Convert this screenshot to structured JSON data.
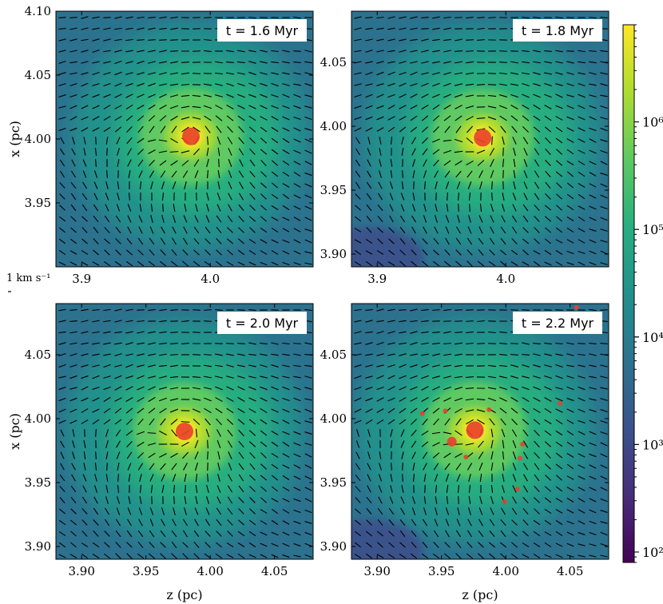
{
  "chart_data": {
    "type": "heatmap",
    "colormap": "viridis",
    "colorbar": {
      "scale": "log",
      "range": [
        80,
        8000000
      ],
      "ticks": [
        {
          "value": 100,
          "label": "10²"
        },
        {
          "value": 1000,
          "label": "10³"
        },
        {
          "value": 10000,
          "label": "10⁴"
        },
        {
          "value": 100000,
          "label": "10⁵"
        },
        {
          "value": 1000000,
          "label": "10⁶"
        }
      ]
    },
    "quiver_scale_label": "1 km s⁻¹",
    "axis_labels": {
      "x": "z (pc)",
      "y": "x (pc)"
    },
    "panels": [
      {
        "time_label": "t = 1.6 Myr",
        "xlim": [
          3.88,
          4.08
        ],
        "ylim": [
          3.9,
          4.1
        ],
        "xticks": [
          {
            "value": 3.9,
            "label": "3.9"
          },
          {
            "value": 4.0,
            "label": "4.0"
          }
        ],
        "yticks": [
          {
            "value": 3.95,
            "label": "3.95"
          },
          {
            "value": 4.0,
            "label": "4.00"
          },
          {
            "value": 4.05,
            "label": "4.05"
          },
          {
            "value": 4.1,
            "label": "4.10"
          }
        ],
        "center": [
          3.985,
          4.002
        ],
        "sink_particles": [
          {
            "z": 3.985,
            "x": 4.002,
            "size": "large"
          }
        ]
      },
      {
        "time_label": "t = 1.8 Myr",
        "xlim": [
          3.88,
          4.08
        ],
        "ylim": [
          3.89,
          4.09
        ],
        "xticks": [
          {
            "value": 3.9,
            "label": "3.9"
          },
          {
            "value": 4.0,
            "label": "4.0"
          }
        ],
        "yticks": [
          {
            "value": 3.9,
            "label": "3.90"
          },
          {
            "value": 3.95,
            "label": "3.95"
          },
          {
            "value": 4.0,
            "label": "4.00"
          },
          {
            "value": 4.05,
            "label": "4.05"
          }
        ],
        "center": [
          3.982,
          3.991
        ],
        "sink_particles": [
          {
            "z": 3.982,
            "x": 3.991,
            "size": "large"
          }
        ]
      },
      {
        "time_label": "t = 2.0 Myr",
        "xlim": [
          3.88,
          4.08
        ],
        "ylim": [
          3.89,
          4.09
        ],
        "xticks": [
          {
            "value": 3.9,
            "label": "3.90"
          },
          {
            "value": 3.95,
            "label": "3.95"
          },
          {
            "value": 4.0,
            "label": "4.00"
          },
          {
            "value": 4.05,
            "label": "4.05"
          }
        ],
        "yticks": [
          {
            "value": 3.9,
            "label": "3.90"
          },
          {
            "value": 3.95,
            "label": "3.95"
          },
          {
            "value": 4.0,
            "label": "4.00"
          },
          {
            "value": 4.05,
            "label": "4.05"
          }
        ],
        "center": [
          3.98,
          3.99
        ],
        "sink_particles": [
          {
            "z": 3.98,
            "x": 3.99,
            "size": "large"
          }
        ]
      },
      {
        "time_label": "t = 2.2 Myr",
        "xlim": [
          3.88,
          4.08
        ],
        "ylim": [
          3.89,
          4.09
        ],
        "xticks": [
          {
            "value": 3.9,
            "label": "3.90"
          },
          {
            "value": 3.95,
            "label": "3.95"
          },
          {
            "value": 4.0,
            "label": "4.00"
          },
          {
            "value": 4.05,
            "label": "4.05"
          }
        ],
        "yticks": [
          {
            "value": 3.9,
            "label": "3.90"
          },
          {
            "value": 3.95,
            "label": "3.95"
          },
          {
            "value": 4.0,
            "label": "4.00"
          },
          {
            "value": 4.05,
            "label": "4.05"
          }
        ],
        "center": [
          3.976,
          3.991
        ],
        "sink_particles": [
          {
            "z": 3.976,
            "x": 3.991,
            "size": "large"
          },
          {
            "z": 3.958,
            "x": 3.982,
            "size": "medium"
          },
          {
            "z": 3.999,
            "x": 3.935,
            "size": "small"
          },
          {
            "z": 4.013,
            "x": 3.98,
            "size": "small"
          },
          {
            "z": 4.042,
            "x": 4.012,
            "size": "small"
          },
          {
            "z": 4.055,
            "x": 4.087,
            "size": "small"
          },
          {
            "z": 3.987,
            "x": 4.007,
            "size": "small"
          },
          {
            "z": 3.953,
            "x": 4.006,
            "size": "small"
          },
          {
            "z": 3.935,
            "x": 4.004,
            "size": "small"
          },
          {
            "z": 4.011,
            "x": 3.969,
            "size": "small"
          },
          {
            "z": 3.969,
            "x": 3.97,
            "size": "small"
          },
          {
            "z": 4.009,
            "x": 3.945,
            "size": "small"
          }
        ]
      }
    ]
  }
}
